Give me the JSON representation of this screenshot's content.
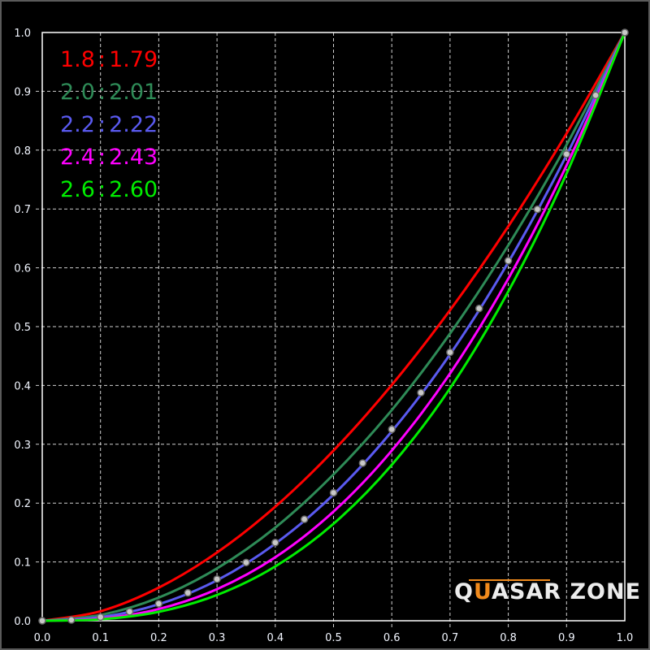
{
  "chart_data": {
    "type": "line",
    "xlim": [
      0,
      1
    ],
    "ylim": [
      0,
      1
    ],
    "x_ticks": [
      "0.0",
      "0.1",
      "0.2",
      "0.3",
      "0.4",
      "0.5",
      "0.6",
      "0.7",
      "0.8",
      "0.9",
      "1.0"
    ],
    "y_ticks": [
      "0.0",
      "0.1",
      "0.2",
      "0.3",
      "0.4",
      "0.5",
      "0.6",
      "0.7",
      "0.8",
      "0.9",
      "1.0"
    ],
    "grid": true,
    "legend_position": "top-left",
    "x": [
      0,
      0.1,
      0.2,
      0.3,
      0.4,
      0.5,
      0.6,
      0.7,
      0.8,
      0.9,
      1.0
    ],
    "series": [
      {
        "name": "1.8 : 1.79",
        "target": "1.8",
        "measured": "1.79",
        "color": "#ff0000",
        "values": [
          0,
          0.0162,
          0.0563,
          0.116,
          0.1939,
          0.2893,
          0.4009,
          0.528,
          0.6704,
          0.8282,
          1
        ]
      },
      {
        "name": "2.0 : 2.01",
        "target": "2.0",
        "measured": "2.01",
        "color": "#2e8b57",
        "values": [
          0,
          0.0098,
          0.0394,
          0.089,
          0.1584,
          0.2488,
          0.3582,
          0.4883,
          0.6385,
          0.809,
          1
        ]
      },
      {
        "name": "2.2 : 2.22",
        "target": "2.2",
        "measured": "2.22",
        "color": "#5a5af0",
        "values": [
          0,
          0.006,
          0.028,
          0.0688,
          0.131,
          0.2146,
          0.322,
          0.4529,
          0.6094,
          0.7915,
          1
        ]
      },
      {
        "name": "2.4 : 2.43",
        "target": "2.4",
        "measured": "2.43",
        "color": "#ff00ff",
        "values": [
          0,
          0.0037,
          0.02,
          0.0537,
          0.1079,
          0.1856,
          0.2893,
          0.4204,
          0.5816,
          0.774,
          1
        ]
      },
      {
        "name": "2.6 : 2.60",
        "target": "2.6",
        "measured": "2.60",
        "color": "#00ee00",
        "values": [
          0,
          0.0025,
          0.0152,
          0.0438,
          0.0924,
          0.1649,
          0.265,
          0.3951,
          0.5598,
          0.7602,
          1
        ]
      }
    ],
    "reference": {
      "color": "#a0a0a0",
      "x": [
        0,
        0.05,
        0.1,
        0.15,
        0.2,
        0.25,
        0.3,
        0.35,
        0.4,
        0.45,
        0.5,
        0.55,
        0.6,
        0.65,
        0.7,
        0.75,
        0.8,
        0.85,
        0.9,
        0.95,
        1
      ],
      "values": [
        0,
        0.0014,
        0.0063,
        0.0154,
        0.029,
        0.0474,
        0.0707,
        0.099,
        0.1329,
        0.1724,
        0.2176,
        0.268,
        0.3254,
        0.3877,
        0.4563,
        0.5309,
        0.6121,
        0.6994,
        0.7932,
        0.8933,
        1
      ]
    }
  },
  "logo": {
    "text_a": "Q",
    "text_b": "U",
    "text_c": "ASAR ZONE",
    "accent": "#f08a1c"
  }
}
